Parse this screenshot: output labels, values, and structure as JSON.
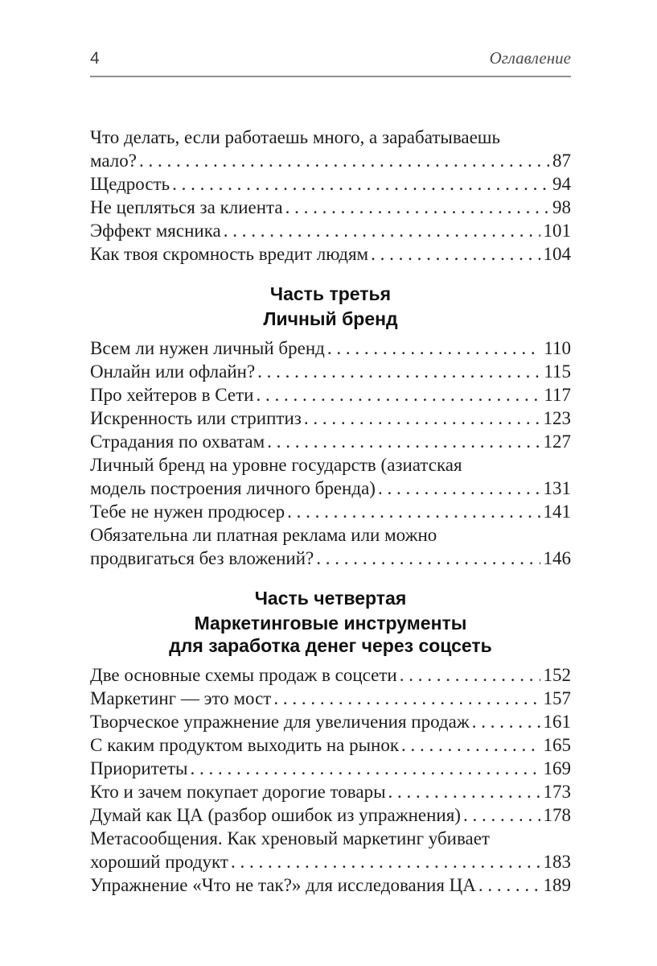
{
  "colors": {
    "body_text": "#1d1d1d",
    "header_text": "#4a4a4a",
    "heading_text": "#101010",
    "rule": "#8f8f8f",
    "page_background": "#ffffff"
  },
  "header": {
    "page_number": "4",
    "running_title": "Оглавление"
  },
  "toc": {
    "sections": [
      {
        "heading": null,
        "entries": [
          {
            "lines": [
              "Что делать, если работаешь много, а зарабатываешь",
              "мало?"
            ],
            "page": "87"
          },
          {
            "lines": [
              "Щедрость"
            ],
            "page": "94"
          },
          {
            "lines": [
              "Не цепляться за клиента"
            ],
            "page": "98"
          },
          {
            "lines": [
              "Эффект мясника"
            ],
            "page": "101"
          },
          {
            "lines": [
              "Как твоя скромность вредит людям"
            ],
            "page": "104"
          }
        ]
      },
      {
        "heading": {
          "part": "Часть третья",
          "title_lines": [
            "Личный бренд"
          ]
        },
        "entries": [
          {
            "lines": [
              "Всем ли нужен личный бренд"
            ],
            "page": "110"
          },
          {
            "lines": [
              "Онлайн или офлайн?"
            ],
            "page": "115"
          },
          {
            "lines": [
              "Про хейтеров в Сети"
            ],
            "page": "117"
          },
          {
            "lines": [
              "Искренность или стриптиз"
            ],
            "page": "123"
          },
          {
            "lines": [
              "Страдания по охватам"
            ],
            "page": "127"
          },
          {
            "lines": [
              "Личный бренд на уровне государств (азиатская",
              "модель построения личного бренда)"
            ],
            "page": "131"
          },
          {
            "lines": [
              "Тебе не нужен продюсер"
            ],
            "page": "141"
          },
          {
            "lines": [
              "Обязательна ли платная реклама или можно",
              "продвигаться без вложений?"
            ],
            "page": "146"
          }
        ]
      },
      {
        "heading": {
          "part": "Часть четвертая",
          "title_lines": [
            "Маркетинговые инструменты",
            "для заработка денег через соцсеть"
          ]
        },
        "entries": [
          {
            "lines": [
              "Две основные схемы продаж в соцсети"
            ],
            "page": "152"
          },
          {
            "lines": [
              "Маркетинг — это мост"
            ],
            "page": "157"
          },
          {
            "lines": [
              "Творческое упражнение для увеличения продаж"
            ],
            "page": "161"
          },
          {
            "lines": [
              "С каким продуктом выходить на рынок"
            ],
            "page": "165"
          },
          {
            "lines": [
              "Приоритеты"
            ],
            "page": "169"
          },
          {
            "lines": [
              "Кто и зачем покупает дорогие товары"
            ],
            "page": "173"
          },
          {
            "lines": [
              "Думай как ЦА (разбор ошибок из упражнения)"
            ],
            "page": "178"
          },
          {
            "lines": [
              "Метасообщения. Как хреновый маркетинг убивает",
              "хороший продукт"
            ],
            "page": "183"
          },
          {
            "lines": [
              "Упражнение «Что не так?» для исследования ЦА"
            ],
            "page": "189"
          }
        ]
      }
    ]
  }
}
